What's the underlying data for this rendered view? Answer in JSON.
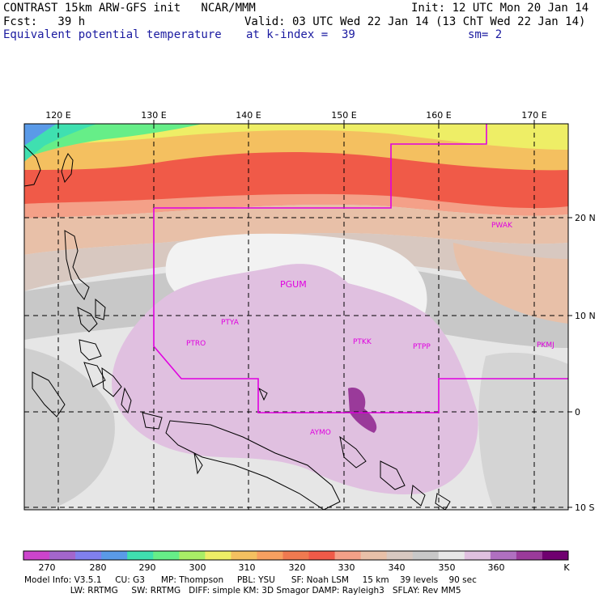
{
  "header": {
    "line1_left": "CONTRAST 15km ARW-GFS init   NCAR/MMM",
    "line1_right": "Init: 12 UTC Mon 20 Jan 14",
    "line2_left": "Fcst:   39 h",
    "line2_right": "Valid: 03 UTC Wed 22 Jan 14 (13 ChT Wed 22 Jan 14)",
    "line3_left": "Equivalent potential temperature",
    "line3_mid": "at k-index =  39",
    "line3_right": "sm= 2"
  },
  "map": {
    "lon_labels": [
      "120 E",
      "130 E",
      "140 E",
      "150 E",
      "160 E",
      "170 E"
    ],
    "lat_labels": [
      "20 N",
      "10 N",
      "0",
      "10 S"
    ],
    "stations": [
      "PWAK",
      "PGUM",
      "PTYA",
      "PTRO",
      "PTKK",
      "PTPP",
      "PKMJ",
      "AYMO"
    ]
  },
  "colorbar": {
    "ticks": [
      "270",
      "280",
      "290",
      "300",
      "310",
      "320",
      "330",
      "340",
      "350",
      "360"
    ],
    "unit": "K",
    "colors": [
      "#cc44cc",
      "#a366cc",
      "#8080ee",
      "#5a9ae8",
      "#3fe0b0",
      "#66ee88",
      "#a8ee66",
      "#eeee66",
      "#f4c060",
      "#f8a060",
      "#f07a50",
      "#f05a48",
      "#f4a088",
      "#e8c0a8",
      "#d8c8c0",
      "#c8c8c8",
      "#e8e8e8",
      "#e0c0e0",
      "#b070c0",
      "#9a3a9a",
      "#700070"
    ]
  },
  "footer": {
    "line1": "Model Info: V3.5.1     CU: G3      MP: Thompson     PBL: YSU      SF: Noah LSM     15 km    39 levels    90 sec",
    "line2": "                 LW: RRTMG     SW: RRTMG   DIFF: simple KM: 3D Smagor DAMP: Rayleigh3   SFLAY: Rev MM5"
  }
}
